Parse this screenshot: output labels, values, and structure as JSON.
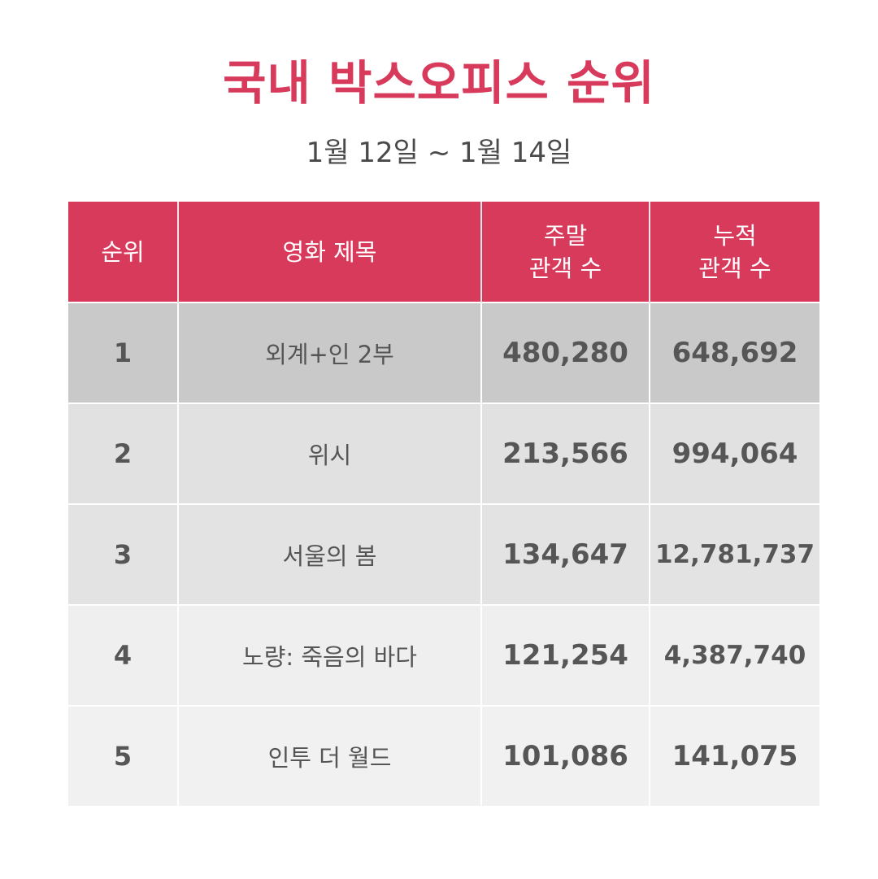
{
  "header": {
    "title": "국내 박스오피스 순위",
    "subtitle": "1월 12일 ~ 1월 14일"
  },
  "colors": {
    "accent": "#d83a5c",
    "row_colors": [
      "#c9c9c9",
      "#e1e1e1",
      "#e3e3e3",
      "#efefef",
      "#f1f1f1"
    ]
  },
  "chart_data": {
    "type": "table",
    "title": "국내 박스오피스 순위",
    "subtitle": "1월 12일 ~ 1월 14일",
    "columns": [
      {
        "label_lines": [
          "순위"
        ]
      },
      {
        "label_lines": [
          "영화 제목"
        ]
      },
      {
        "label_lines": [
          "주말",
          "관객 수"
        ]
      },
      {
        "label_lines": [
          "누적",
          "관객 수"
        ]
      }
    ],
    "rows": [
      {
        "rank": "1",
        "title": "외계+인 2부",
        "weekend": "480,280",
        "total": "648,692"
      },
      {
        "rank": "2",
        "title": "위시",
        "weekend": "213,566",
        "total": "994,064"
      },
      {
        "rank": "3",
        "title": "서울의 봄",
        "weekend": "134,647",
        "total": "12,781,737"
      },
      {
        "rank": "4",
        "title": "노량: 죽음의 바다",
        "weekend": "121,254",
        "total": "4,387,740"
      },
      {
        "rank": "5",
        "title": "인투 더 월드",
        "weekend": "101,086",
        "total": "141,075"
      }
    ]
  }
}
